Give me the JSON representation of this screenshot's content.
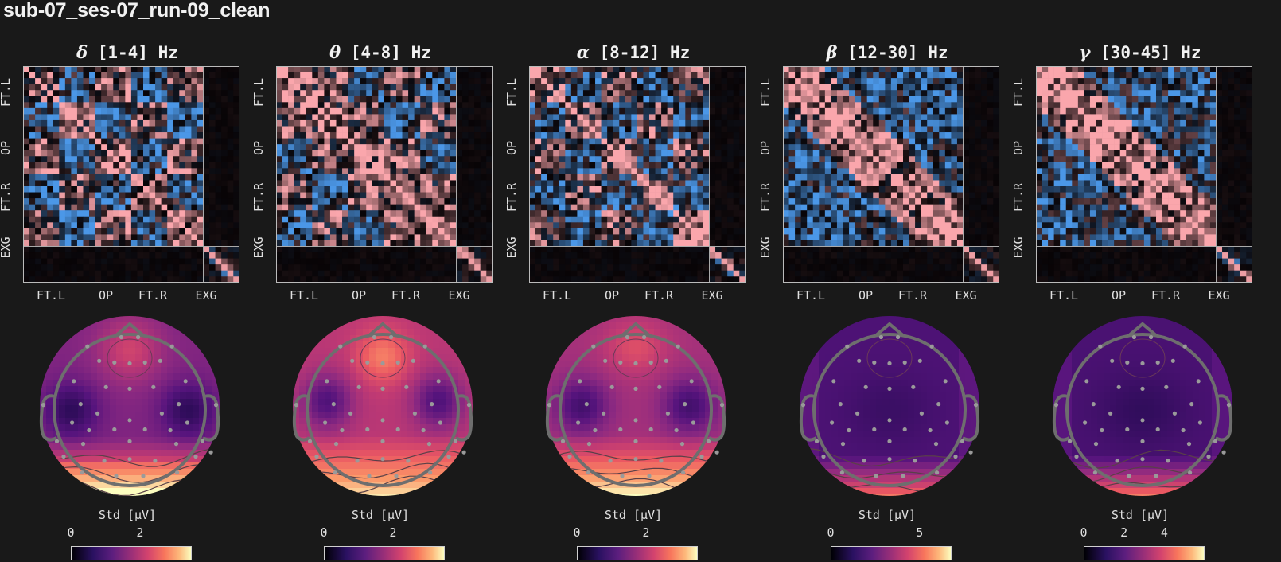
{
  "title": "sub-07_ses-07_run-09_clean",
  "chart_data": [
    {
      "type": "heatmap",
      "title_symbol": "δ",
      "title_range": "[1-4] Hz",
      "x_tick_labels": [
        "FT.L",
        "OP",
        "FT.R",
        "EXG"
      ],
      "y_tick_labels": [
        "FT.L",
        "OP",
        "FT.R",
        "EXG"
      ],
      "topomap": {
        "colorbar_label": "Std [μV]",
        "colorbar_ticks": [
          {
            "value": 0,
            "label": "0"
          },
          {
            "value": 2,
            "label": "2"
          }
        ],
        "vmax": 3.5,
        "pattern": "delta"
      }
    },
    {
      "type": "heatmap",
      "title_symbol": "θ",
      "title_range": "[4-8] Hz",
      "x_tick_labels": [
        "FT.L",
        "OP",
        "FT.R",
        "EXG"
      ],
      "y_tick_labels": [
        "FT.L",
        "OP",
        "FT.R",
        "EXG"
      ],
      "topomap": {
        "colorbar_label": "Std [μV]",
        "colorbar_ticks": [
          {
            "value": 0,
            "label": "0"
          },
          {
            "value": 2,
            "label": "2"
          }
        ],
        "vmax": 3.5,
        "pattern": "theta"
      }
    },
    {
      "type": "heatmap",
      "title_symbol": "α",
      "title_range": "[8-12] Hz",
      "x_tick_labels": [
        "FT.L",
        "OP",
        "FT.R",
        "EXG"
      ],
      "y_tick_labels": [
        "FT.L",
        "OP",
        "FT.R",
        "EXG"
      ],
      "topomap": {
        "colorbar_label": "Std [μV]",
        "colorbar_ticks": [
          {
            "value": 0,
            "label": "0"
          },
          {
            "value": 2,
            "label": "2"
          }
        ],
        "vmax": 3.5,
        "pattern": "alpha"
      }
    },
    {
      "type": "heatmap",
      "title_symbol": "β",
      "title_range": "[12-30] Hz",
      "x_tick_labels": [
        "FT.L",
        "OP",
        "FT.R",
        "EXG"
      ],
      "y_tick_labels": [
        "FT.L",
        "OP",
        "FT.R",
        "EXG"
      ],
      "topomap": {
        "colorbar_label": "Std [μV]",
        "colorbar_ticks": [
          {
            "value": 0,
            "label": "0"
          },
          {
            "value": 5,
            "label": "5"
          }
        ],
        "vmax": 6.8,
        "pattern": "beta"
      }
    },
    {
      "type": "heatmap",
      "title_symbol": "γ",
      "title_range": "[30-45] Hz",
      "x_tick_labels": [
        "FT.L",
        "OP",
        "FT.R",
        "EXG"
      ],
      "y_tick_labels": [
        "FT.L",
        "OP",
        "FT.R",
        "EXG"
      ],
      "topomap": {
        "colorbar_label": "Std [μV]",
        "colorbar_ticks": [
          {
            "value": 0,
            "label": "0"
          },
          {
            "value": 2,
            "label": "2"
          },
          {
            "value": 4,
            "label": "4"
          }
        ],
        "vmax": 6.0,
        "pattern": "gamma"
      }
    }
  ]
}
